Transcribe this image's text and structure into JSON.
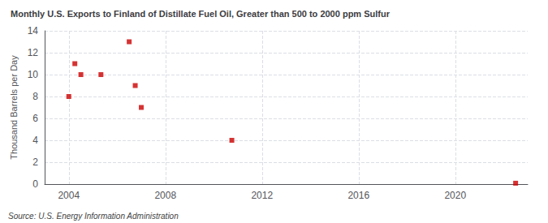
{
  "chart_data": {
    "type": "scatter",
    "title": "Monthly U.S. Exports to Finland of Distillate Fuel Oil, Greater than 500 to 2000 ppm Sulfur",
    "ylabel": "Thousand Barrels per Day",
    "annotations": [
      "Source: U.S. Energy Information Administration"
    ],
    "x": [
      2004.0,
      2004.25,
      2004.5,
      2005.33,
      2006.5,
      2006.75,
      2007.0,
      2010.75,
      2022.5
    ],
    "values": [
      8,
      11,
      10,
      10,
      13,
      9,
      7,
      4,
      0.08
    ],
    "color": "#cc0000",
    "marker": "square",
    "xlim": [
      2003.0,
      2023.0
    ],
    "xticks": [
      2004,
      2008,
      2012,
      2016,
      2020
    ],
    "ylim": [
      0,
      14
    ],
    "yticks": [
      0,
      2,
      4,
      6,
      8,
      10,
      12,
      14
    ],
    "grid": true
  }
}
